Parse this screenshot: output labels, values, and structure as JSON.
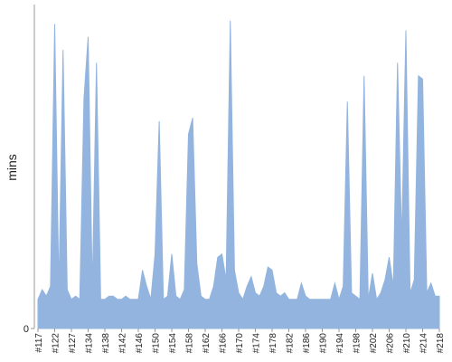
{
  "chart_data": {
    "type": "area",
    "y_label": "mins",
    "color": "#92b4de",
    "categories": [
      "#117",
      null,
      null,
      null,
      "#122",
      null,
      null,
      null,
      "#127",
      null,
      null,
      null,
      "#134",
      null,
      null,
      null,
      "#138",
      null,
      null,
      null,
      "#142",
      null,
      null,
      null,
      "#146",
      null,
      null,
      null,
      "#150",
      null,
      null,
      null,
      "#154",
      null,
      null,
      null,
      "#158",
      null,
      null,
      null,
      "#162",
      null,
      null,
      null,
      "#166",
      null,
      null,
      null,
      "#170",
      null,
      null,
      null,
      "#174",
      null,
      null,
      null,
      "#178",
      null,
      null,
      null,
      "#182",
      null,
      null,
      null,
      "#186",
      null,
      null,
      null,
      "#190",
      null,
      null,
      null,
      "#194",
      null,
      null,
      null,
      "#198",
      null,
      null,
      null,
      "#202",
      null,
      null,
      null,
      "#206",
      null,
      null,
      null,
      "#210",
      null,
      null,
      null,
      "#214",
      null,
      null,
      null,
      "#218"
    ],
    "values": [
      9,
      12,
      10,
      13,
      94,
      12,
      86,
      12,
      9,
      10,
      9,
      71,
      90,
      12,
      82,
      9,
      9,
      10,
      10,
      9,
      9,
      10,
      9,
      9,
      9,
      18,
      13,
      9,
      23,
      64,
      9,
      10,
      23,
      10,
      9,
      12,
      60,
      65,
      20,
      10,
      9,
      9,
      13,
      22,
      23,
      15,
      95,
      18,
      11,
      9,
      13,
      16,
      11,
      10,
      13,
      19,
      18,
      11,
      10,
      11,
      9,
      9,
      9,
      14,
      10,
      9,
      9,
      9,
      9,
      9,
      9,
      14,
      9,
      13,
      70,
      11,
      10,
      9,
      78,
      9,
      17,
      9,
      11,
      15,
      22,
      13,
      82,
      27,
      92,
      11,
      15,
      78,
      77,
      11,
      14,
      10,
      10
    ],
    "ylim": [
      0,
      100
    ],
    "yticks": [
      0
    ]
  }
}
